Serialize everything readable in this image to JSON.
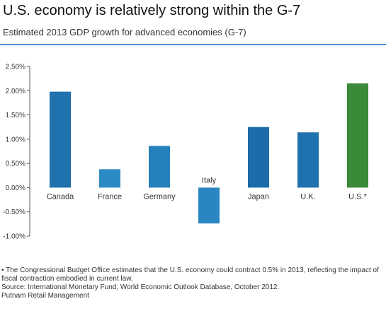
{
  "header": {
    "title": "U.S. economy is relatively strong within the G-7",
    "subtitle": "Estimated 2013 GDP growth for advanced economies (G-7)"
  },
  "chart_data": {
    "type": "bar",
    "categories": [
      "Canada",
      "France",
      "Germany",
      "Italy",
      "Japan",
      "U.K.",
      "U.S.*"
    ],
    "values": [
      1.98,
      0.38,
      0.86,
      -0.74,
      1.25,
      1.14,
      2.15
    ],
    "colors": [
      "#1f72ad",
      "#2c8bc4",
      "#2680bb",
      "#2a86c0",
      "#1b6ca8",
      "#1f72ad",
      "#3a8a3a"
    ],
    "ylim": [
      -1.0,
      2.5
    ],
    "yticks": [
      "2.50%",
      "2.00%",
      "1.50%",
      "1.00%",
      "0.50%",
      "0.00%",
      "-0.50%",
      "-1.00%"
    ],
    "ytick_values": [
      2.5,
      2.0,
      1.5,
      1.0,
      0.5,
      0.0,
      -0.5,
      -1.0
    ],
    "grid": false
  },
  "footer": {
    "note": "• The Congressional Budget Office estimates that the U.S. economy could contract 0.5% in 2013, reflecting the impact of fiscal contraction embodied in current law.",
    "source": "Source: International Monetary Fund, World Economic Outlook Database, October 2012.",
    "credit": "Putnam Retail Management"
  }
}
